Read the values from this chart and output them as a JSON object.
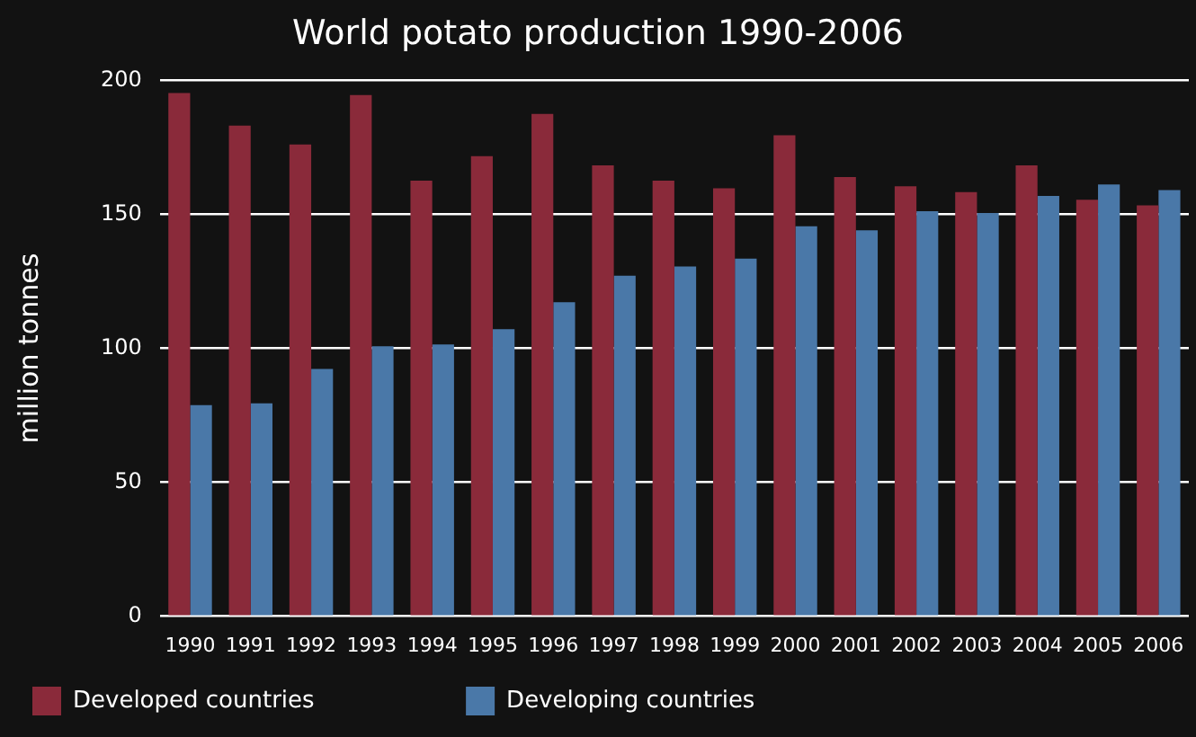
{
  "chart_data": {
    "type": "bar",
    "title": "World potato production 1990-2006",
    "ylabel": "million tonnes",
    "categories": [
      "1990",
      "1991",
      "1992",
      "1993",
      "1994",
      "1995",
      "1996",
      "1997",
      "1998",
      "1999",
      "2000",
      "2001",
      "2002",
      "2003",
      "2004",
      "2005",
      "2006"
    ],
    "series": [
      {
        "name": "Developed countries",
        "color": "#8a2a3a",
        "values": [
          195.3,
          183.2,
          176.1,
          194.6,
          162.6,
          171.8,
          187.5,
          168.3,
          162.6,
          159.8,
          179.6,
          164,
          160.5,
          158.3,
          168.3,
          155.5,
          153.4
        ]
      },
      {
        "name": "Developing countries",
        "color": "#4a78a8",
        "values": [
          78.8,
          79.5,
          92.3,
          100.8,
          101.5,
          107.2,
          117.2,
          127.1,
          130.6,
          133.5,
          145.6,
          144.1,
          151.2,
          150.5,
          156.9,
          161.2,
          159.1
        ]
      }
    ],
    "ylim": [
      0,
      200
    ],
    "yticks": [
      0,
      50,
      100,
      150,
      200
    ],
    "grid": "y",
    "legend": "bottom left"
  }
}
